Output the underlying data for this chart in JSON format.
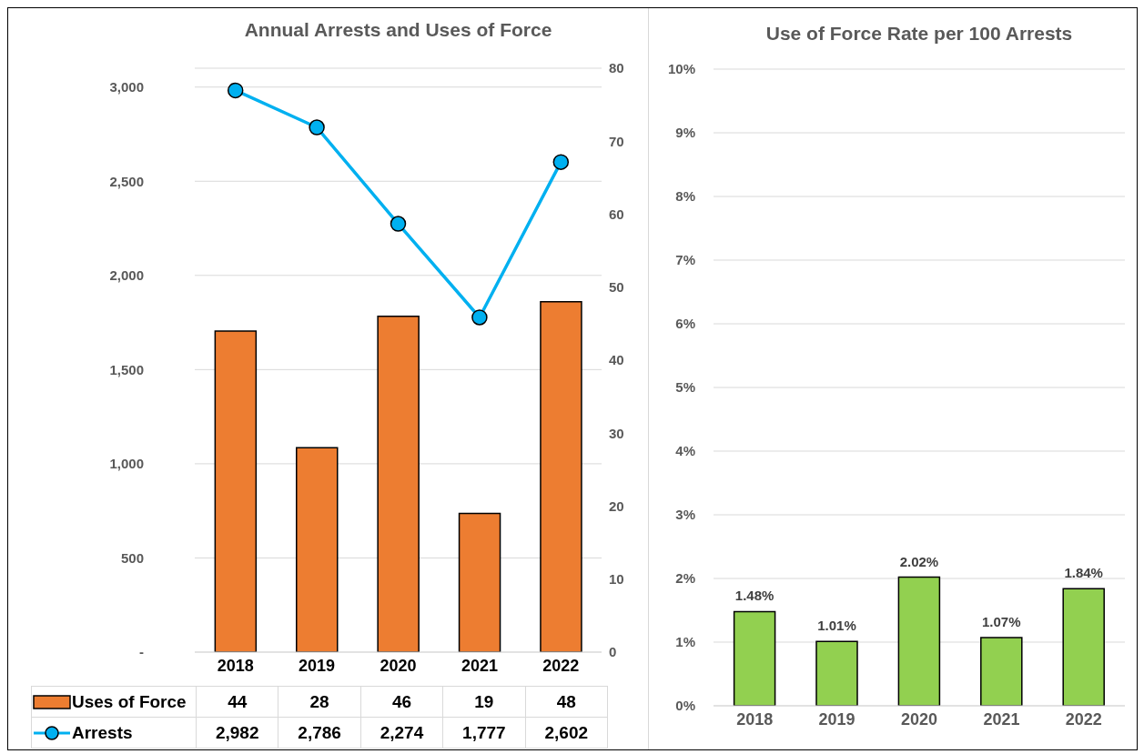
{
  "chart_data": [
    {
      "type": "bar",
      "title": "Annual Arrests and Uses of Force",
      "categories": [
        "2018",
        "2019",
        "2020",
        "2021",
        "2022"
      ],
      "series": [
        {
          "name": "Uses of Force",
          "type": "bar",
          "axis": "y2",
          "color": "#ed7d31",
          "values": [
            44,
            28,
            46,
            19,
            48
          ],
          "value_labels": [
            "44",
            "28",
            "46",
            "19",
            "48"
          ]
        },
        {
          "name": "Arrests",
          "type": "line",
          "color": "#00b0f0",
          "values": [
            2982,
            2786,
            2274,
            1777,
            2602
          ],
          "value_labels": [
            "2,982",
            "2,786",
            "2,274",
            "1,777",
            "2,602"
          ]
        }
      ],
      "marker": "circle",
      "ylim": [
        0,
        3100
      ],
      "yticks": [
        {
          "value": 0,
          "label": "-"
        },
        500,
        {
          "value": 1000,
          "label": "1,000"
        },
        {
          "value": 1500,
          "label": "1,500"
        },
        {
          "value": 2000,
          "label": "2,000"
        },
        {
          "value": 2500,
          "label": "2,500"
        },
        {
          "value": 3000,
          "label": "3,000"
        }
      ],
      "y2lim": [
        0,
        80
      ],
      "y2ticks": [
        0,
        10,
        20,
        30,
        40,
        50,
        60,
        70,
        80
      ],
      "grid": "y",
      "legend": "bottom left"
    },
    {
      "type": "bar",
      "title": "Use of Force Rate per 100 Arrests",
      "categories": [
        "2018",
        "2019",
        "2020",
        "2021",
        "2022"
      ],
      "color": "#92d050",
      "values": [
        1.48,
        1.01,
        2.02,
        1.07,
        1.84
      ],
      "value_labels": [
        "1.48%",
        "1.01%",
        "2.02%",
        "1.07%",
        "1.84%"
      ],
      "ylim": [
        0,
        10
      ],
      "yticks": [
        {
          "value": 0,
          "label": "0%"
        },
        {
          "value": 1,
          "label": "1%"
        },
        {
          "value": 2,
          "label": "2%"
        },
        {
          "value": 3,
          "label": "3%"
        },
        {
          "value": 4,
          "label": "4%"
        },
        {
          "value": 5,
          "label": "5%"
        },
        {
          "value": 6,
          "label": "6%"
        },
        {
          "value": 7,
          "label": "7%"
        },
        {
          "value": 8,
          "label": "8%"
        },
        {
          "value": 9,
          "label": "9%"
        },
        {
          "value": 10,
          "label": "10%"
        }
      ],
      "grid": "y"
    }
  ]
}
